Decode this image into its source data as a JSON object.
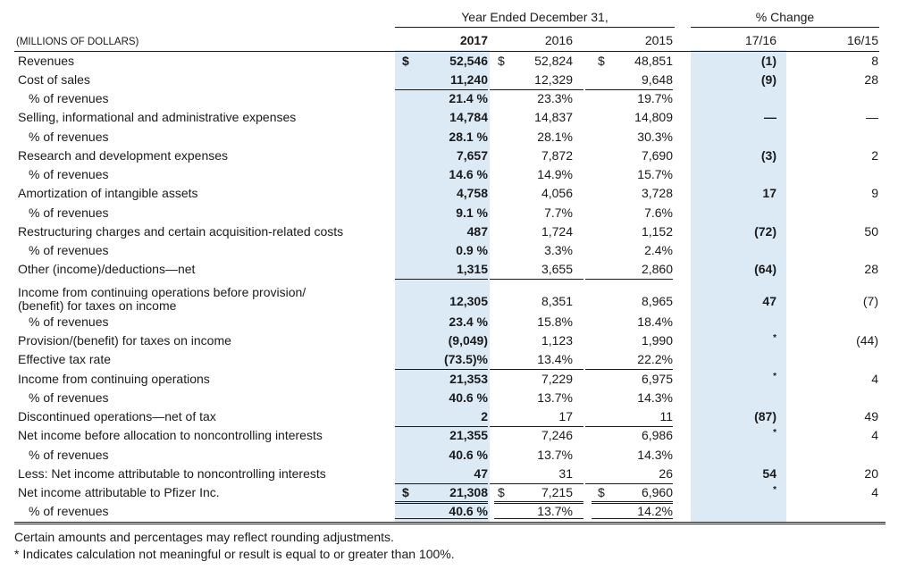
{
  "header": {
    "year_group": "Year Ended December 31,",
    "change_group": "% Change",
    "units_label": "(MILLIONS OF DOLLARS)",
    "columns": [
      "2017",
      "2016",
      "2015",
      "17/16",
      "16/15"
    ]
  },
  "rows": [
    {
      "label": "Revenues",
      "v2017": "52,546",
      "v2016": "52,824",
      "v2015": "48,851",
      "c1716": "(1)",
      "c1615": "8",
      "dollar": true
    },
    {
      "label": "Cost of sales",
      "v2017": "11,240",
      "v2016": "12,329",
      "v2015": "9,648",
      "c1716": "(9)",
      "c1615": "28"
    },
    {
      "label": "% of revenues",
      "v2017": "21.4 %",
      "v2016": "23.3%",
      "v2015": "19.7%",
      "c1716": "",
      "c1615": "",
      "indent": true
    },
    {
      "label": "Selling, informational and administrative expenses",
      "v2017": "14,784",
      "v2016": "14,837",
      "v2015": "14,809",
      "c1716": "—",
      "c1615": "—"
    },
    {
      "label": "% of revenues",
      "v2017": "28.1 %",
      "v2016": "28.1%",
      "v2015": "30.3%",
      "c1716": "",
      "c1615": "",
      "indent": true
    },
    {
      "label": "Research and development expenses",
      "v2017": "7,657",
      "v2016": "7,872",
      "v2015": "7,690",
      "c1716": "(3)",
      "c1615": "2"
    },
    {
      "label": "% of revenues",
      "v2017": "14.6 %",
      "v2016": "14.9%",
      "v2015": "15.7%",
      "c1716": "",
      "c1615": "",
      "indent": true
    },
    {
      "label": "Amortization of intangible assets",
      "v2017": "4,758",
      "v2016": "4,056",
      "v2015": "3,728",
      "c1716": "17",
      "c1615": "9"
    },
    {
      "label": "% of revenues",
      "v2017": "9.1 %",
      "v2016": "7.7%",
      "v2015": "7.6%",
      "c1716": "",
      "c1615": "",
      "indent": true
    },
    {
      "label": "Restructuring charges and certain acquisition-related costs",
      "v2017": "487",
      "v2016": "1,724",
      "v2015": "1,152",
      "c1716": "(72)",
      "c1615": "50"
    },
    {
      "label": "% of revenues",
      "v2017": "0.9 %",
      "v2016": "3.3%",
      "v2015": "2.4%",
      "c1716": "",
      "c1615": "",
      "indent": true
    },
    {
      "label": "Other (income)/deductions—net",
      "v2017": "1,315",
      "v2016": "3,655",
      "v2015": "2,860",
      "c1716": "(64)",
      "c1615": "28"
    },
    {
      "label": "Income from continuing operations before provision/",
      "label2": " (benefit) for taxes on income",
      "v2017": "12,305",
      "v2016": "8,351",
      "v2015": "8,965",
      "c1716": "47",
      "c1615": "(7)"
    },
    {
      "label": "% of revenues",
      "v2017": "23.4 %",
      "v2016": "15.8%",
      "v2015": "18.4%",
      "c1716": "",
      "c1615": "",
      "indent": true
    },
    {
      "label": "Provision/(benefit) for taxes on income",
      "v2017": "(9,049)",
      "v2016": "1,123",
      "v2015": "1,990",
      "c1716": "*",
      "c1615": "(44)"
    },
    {
      "label": "Effective tax rate",
      "v2017": "(73.5)%",
      "v2016": "13.4%",
      "v2015": "22.2%",
      "c1716": "",
      "c1615": ""
    },
    {
      "label": "Income from continuing operations",
      "v2017": "21,353",
      "v2016": "7,229",
      "v2015": "6,975",
      "c1716": "*",
      "c1615": "4"
    },
    {
      "label": "% of revenues",
      "v2017": "40.6 %",
      "v2016": "13.7%",
      "v2015": "14.3%",
      "c1716": "",
      "c1615": "",
      "indent": true
    },
    {
      "label": "Discontinued operations—net of tax",
      "v2017": "2",
      "v2016": "17",
      "v2015": "11",
      "c1716": "(87)",
      "c1615": "49"
    },
    {
      "label": "Net income before allocation to noncontrolling interests",
      "v2017": "21,355",
      "v2016": "7,246",
      "v2015": "6,986",
      "c1716": "*",
      "c1615": "4"
    },
    {
      "label": "% of revenues",
      "v2017": "40.6 %",
      "v2016": "13.7%",
      "v2015": "14.3%",
      "c1716": "",
      "c1615": "",
      "indent": true
    },
    {
      "label": "Less: Net income attributable to noncontrolling interests",
      "v2017": "47",
      "v2016": "31",
      "v2015": "26",
      "c1716": "54",
      "c1615": "20"
    },
    {
      "label": "Net income attributable to Pfizer Inc.",
      "v2017": "21,308",
      "v2016": "7,215",
      "v2015": "6,960",
      "c1716": "*",
      "c1615": "4",
      "dollar": true
    },
    {
      "label": "% of revenues",
      "v2017": "40.6 %",
      "v2016": "13.7%",
      "v2015": "14.2%",
      "c1716": "",
      "c1615": "",
      "indent": true
    }
  ],
  "currency_symbol": "$",
  "footnotes": [
    "Certain amounts and percentages may reflect rounding adjustments.",
    "*  Indicates calculation not meaningful or result is equal to or greater than 100%."
  ],
  "colors": {
    "highlight_band": "#dceaf5",
    "text": "#1a1a1a"
  }
}
